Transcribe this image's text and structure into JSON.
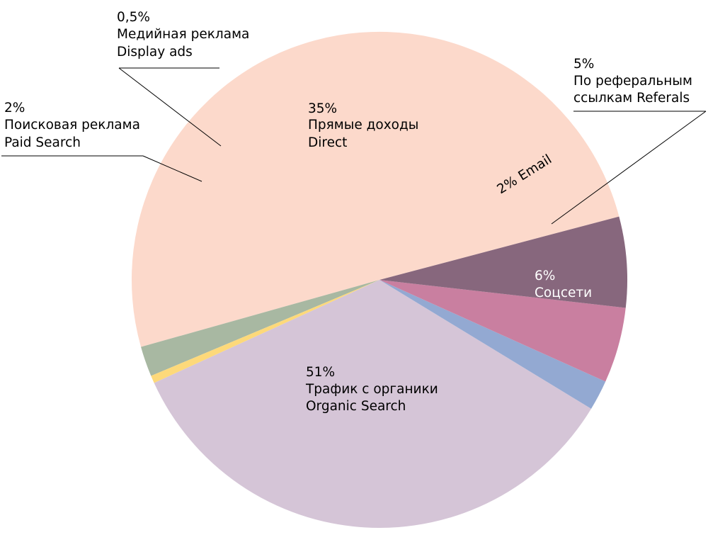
{
  "chart_data": {
    "type": "pie",
    "slices": [
      {
        "pct": "51%",
        "value": 51,
        "label": "Трафик с органики",
        "label_en": "Organic Search",
        "color": "#FCD9CB",
        "text_color": "#000000"
      },
      {
        "pct": "2%",
        "value": 2,
        "label": "Поисковая реклама",
        "label_en": "Paid Search",
        "color": "#A8B8A2",
        "text_color": "#000000"
      },
      {
        "pct": "0,5%",
        "value": 0.5,
        "label": "Медийная реклама",
        "label_en": "Display ads",
        "color": "#FDD97A",
        "text_color": "#000000"
      },
      {
        "pct": "35%",
        "value": 35,
        "label": "Прямые доходы",
        "label_en": "Direct",
        "color": "#D5C5D7",
        "text_color": "#000000"
      },
      {
        "pct": "2%",
        "value": 2,
        "label": "",
        "label_en": "Email",
        "color": "#93A9D2",
        "text_color": "#000000"
      },
      {
        "pct": "5%",
        "value": 5,
        "label": "По реферальным",
        "label_en": "ссылкам Referals",
        "color": "#C97FA0",
        "text_color": "#000000"
      },
      {
        "pct": "6%",
        "value": 6,
        "label": "Соцсети",
        "label_en": "",
        "color": "#87677D",
        "text_color": "#ffffff"
      }
    ]
  }
}
